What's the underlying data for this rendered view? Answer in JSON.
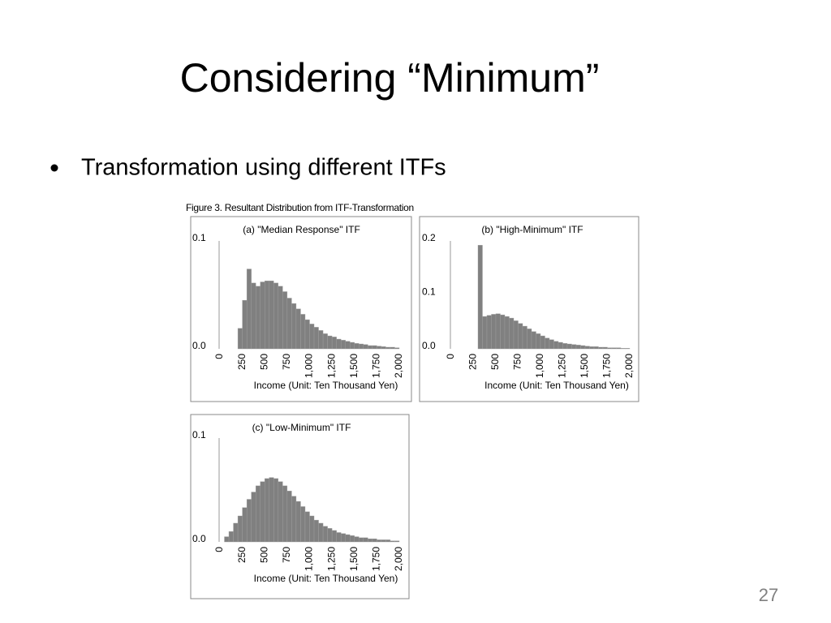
{
  "slide": {
    "title": "Considering “Minimum”",
    "bullet": "Transformation using different ITFs",
    "figure_caption": "Figure 3. Resultant Distribution from ITF-Transformation",
    "page_number": "27"
  },
  "chart_data": [
    {
      "type": "histogram",
      "title": "(a) \"Median Response\" ITF",
      "x_label": "Income (Unit: Ten Thousand Yen)",
      "color": "#808080",
      "grid": false,
      "bins": [
        200,
        250,
        300,
        350,
        400,
        450,
        500,
        550,
        600,
        650,
        700,
        750,
        800,
        850,
        900,
        950,
        1000,
        1050,
        1100,
        1150,
        1200,
        1250,
        1300,
        1350,
        1400,
        1450,
        1500,
        1550,
        1600,
        1650,
        1700,
        1750,
        1800,
        1850,
        1900,
        1950,
        2000
      ],
      "values": [
        0.019,
        0.045,
        0.074,
        0.061,
        0.058,
        0.062,
        0.063,
        0.063,
        0.061,
        0.058,
        0.053,
        0.047,
        0.042,
        0.037,
        0.032,
        0.027,
        0.023,
        0.02,
        0.017,
        0.014,
        0.012,
        0.011,
        0.009,
        0.008,
        0.007,
        0.006,
        0.005,
        0.0045,
        0.004,
        0.003,
        0.003,
        0.0025,
        0.002,
        0.0015,
        0.0015,
        0.001
      ],
      "xlim": [
        0,
        2000
      ],
      "xticks": [
        0,
        250,
        500,
        750,
        {
          "value": 1000,
          "label": "1,000"
        },
        {
          "value": 1250,
          "label": "1,250"
        },
        {
          "value": 1500,
          "label": "1,500"
        },
        {
          "value": 1750,
          "label": "1,750"
        },
        {
          "value": 2000,
          "label": "2,000"
        }
      ],
      "ylim": [
        0,
        0.1
      ],
      "yticks": [
        {
          "value": 0,
          "label": "0.0"
        },
        0.1
      ]
    },
    {
      "type": "histogram",
      "title": "(b) \"High-Minimum\" ITF",
      "x_label": "Income (Unit: Ten Thousand Yen)",
      "color": "#808080",
      "grid": false,
      "bins": [
        300,
        350,
        400,
        450,
        500,
        550,
        600,
        650,
        700,
        750,
        800,
        850,
        900,
        950,
        1000,
        1050,
        1100,
        1150,
        1200,
        1250,
        1300,
        1350,
        1400,
        1450,
        1500,
        1550,
        1600,
        1650,
        1700,
        1750,
        1800,
        1850,
        1900,
        1950,
        2000
      ],
      "values": [
        0.192,
        0.06,
        0.062,
        0.064,
        0.065,
        0.063,
        0.06,
        0.057,
        0.052,
        0.047,
        0.042,
        0.037,
        0.032,
        0.028,
        0.024,
        0.02,
        0.017,
        0.014,
        0.012,
        0.01,
        0.009,
        0.008,
        0.007,
        0.006,
        0.005,
        0.004,
        0.004,
        0.003,
        0.003,
        0.002,
        0.002,
        0.002,
        0.001,
        0.001
      ],
      "xlim": [
        0,
        2000
      ],
      "xticks": [
        0,
        250,
        500,
        750,
        {
          "value": 1000,
          "label": "1,000"
        },
        {
          "value": 1250,
          "label": "1,250"
        },
        {
          "value": 1500,
          "label": "1,500"
        },
        {
          "value": 1750,
          "label": "1,750"
        },
        {
          "value": 2000,
          "label": "2,000"
        }
      ],
      "ylim": [
        0,
        0.2
      ],
      "yticks": [
        {
          "value": 0,
          "label": "0.0"
        },
        0.1,
        0.2
      ]
    },
    {
      "type": "histogram",
      "title": "(c) \"Low-Minimum\" ITF",
      "x_label": "Income (Unit: Ten Thousand Yen)",
      "color": "#808080",
      "grid": false,
      "bins": [
        50,
        100,
        150,
        200,
        250,
        300,
        350,
        400,
        450,
        500,
        550,
        600,
        650,
        700,
        750,
        800,
        850,
        900,
        950,
        1000,
        1050,
        1100,
        1150,
        1200,
        1250,
        1300,
        1350,
        1400,
        1450,
        1500,
        1550,
        1600,
        1650,
        1700,
        1750,
        1800,
        1850,
        1900,
        1950,
        2000
      ],
      "values": [
        0.005,
        0.01,
        0.018,
        0.025,
        0.033,
        0.041,
        0.048,
        0.054,
        0.058,
        0.061,
        0.062,
        0.061,
        0.058,
        0.054,
        0.049,
        0.044,
        0.039,
        0.034,
        0.029,
        0.025,
        0.021,
        0.018,
        0.015,
        0.013,
        0.011,
        0.009,
        0.008,
        0.007,
        0.006,
        0.005,
        0.004,
        0.004,
        0.003,
        0.003,
        0.002,
        0.002,
        0.002,
        0.001,
        0.001
      ],
      "xlim": [
        0,
        2000
      ],
      "xticks": [
        0,
        250,
        500,
        750,
        {
          "value": 1000,
          "label": "1,000"
        },
        {
          "value": 1250,
          "label": "1,250"
        },
        {
          "value": 1500,
          "label": "1,500"
        },
        {
          "value": 1750,
          "label": "1,750"
        },
        {
          "value": 2000,
          "label": "2,000"
        }
      ],
      "ylim": [
        0,
        0.1
      ],
      "yticks": [
        {
          "value": 0,
          "label": "0.0"
        },
        0.1
      ]
    }
  ]
}
